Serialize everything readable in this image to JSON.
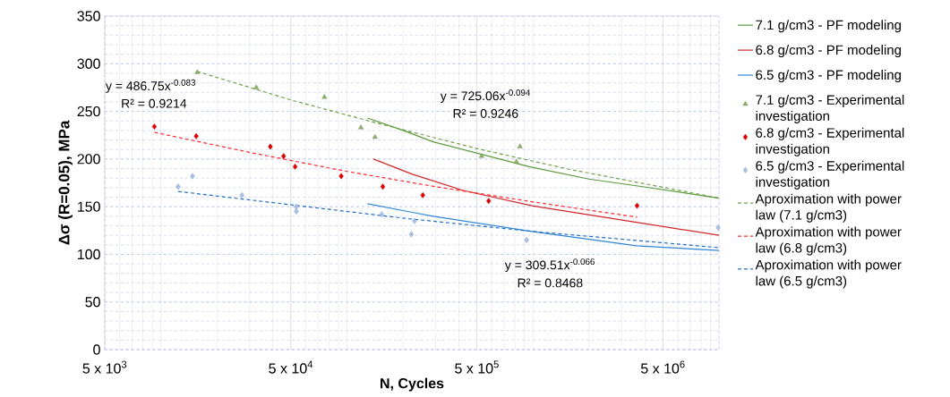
{
  "chart_data": {
    "type": "line",
    "xlabel": "N,  Cycles",
    "ylabel": "Δσ (R=0.05), MPa",
    "log": "x",
    "grid": true,
    "legend": "right",
    "xlim": [
      5000,
      10000000
    ],
    "ylim": [
      0,
      350
    ],
    "xticks": [
      {
        "value": 5000,
        "label": "5 x 10$^{3}$"
      },
      {
        "value": 50000,
        "label": "5 x 10$^{4}$"
      },
      {
        "value": 500000,
        "label": "5 x 10$^{5}$"
      },
      {
        "value": 5000000,
        "label": "5 x 10$^{6}$"
      }
    ],
    "yticks": [
      0,
      50,
      100,
      150,
      200,
      250,
      300,
      350
    ],
    "annotations": [
      "y = 486.75x$^{-0.083}$",
      "R² = 0.9214",
      "y = 725.06x$^{-0.094}$",
      "R² = 0.9246",
      "y = 309.51x$^{-0.066}$",
      "R² = 0.8468"
    ],
    "series": [
      {
        "name": "7.1 g/cm3 - PF modeling",
        "line_style": "solid",
        "color": "#5a9a3a",
        "x": [
          129000,
          201000,
          291000,
          953000,
          2000000,
          3880000,
          10000000
        ],
        "values": [
          243,
          230,
          218,
          192,
          179,
          171,
          159
        ]
      },
      {
        "name": "6.8 g/cm3 - PF modeling",
        "line_style": "solid",
        "color": "#d02828",
        "x": [
          139000,
          225000,
          422000,
          988000,
          3470000,
          10000000
        ],
        "values": [
          200,
          184,
          167,
          151,
          134,
          120
        ]
      },
      {
        "name": "6.5 g/cm3 - PF modeling",
        "line_style": "solid",
        "color": "#2f86d6",
        "x": [
          129000,
          225000,
          291000,
          988000,
          3600000,
          10000000
        ],
        "values": [
          153,
          144,
          140,
          124,
          109,
          104
        ]
      },
      {
        "name": "7.1 g/cm3 - Experimental investigation",
        "type": "scatter",
        "marker": "triangle",
        "color": "#8fb069",
        "x": [
          15700,
          32600,
          75800,
          119000,
          141600,
          530000,
          852000,
          815000
        ],
        "values": [
          291,
          275,
          265,
          233,
          223,
          203,
          213,
          197
        ]
      },
      {
        "name": "6.8 g/cm3 - Experimental investigation",
        "type": "scatter",
        "marker": "diamond",
        "color": "#e00000",
        "x": [
          9240,
          15500,
          38800,
          45700,
          52700,
          93300,
          156000,
          256000,
          578000,
          3630000
        ],
        "values": [
          234,
          224,
          213,
          203,
          192,
          182,
          171,
          162,
          156,
          151
        ]
      },
      {
        "name": "6.5 g/cm3 - Experimental investigation",
        "type": "scatter",
        "marker": "diamond",
        "color": "#a9bfe6",
        "x": [
          12400,
          14800,
          27300,
          53500,
          53500,
          154000,
          222000,
          231000,
          925000,
          9900000
        ],
        "values": [
          171,
          182,
          162,
          150,
          145,
          142,
          121,
          135,
          115,
          128
        ]
      },
      {
        "name": "Aproximation with power law (7.1 g/cm3)",
        "line_style": "dashed",
        "color": "#70a048",
        "x": [
          15700,
          50000,
          150000,
          500000,
          1500000,
          10000000
        ],
        "values": [
          292,
          262,
          237,
          211,
          190,
          159
        ]
      },
      {
        "name": "Aproximation with power law (6.8 g/cm3)",
        "line_style": "dashed",
        "color": "#ff2a2a",
        "x": [
          9240,
          30000,
          100000,
          300000,
          1000000,
          3630000
        ],
        "values": [
          228,
          207,
          187,
          171,
          155,
          139
        ]
      },
      {
        "name": "Aproximation with power law (6.5 g/cm3)",
        "line_style": "dashed",
        "color": "#1f6fc5",
        "x": [
          12400,
          50000,
          200000,
          1000000,
          10000000
        ],
        "values": [
          166,
          152,
          138,
          124,
          107
        ]
      }
    ]
  }
}
